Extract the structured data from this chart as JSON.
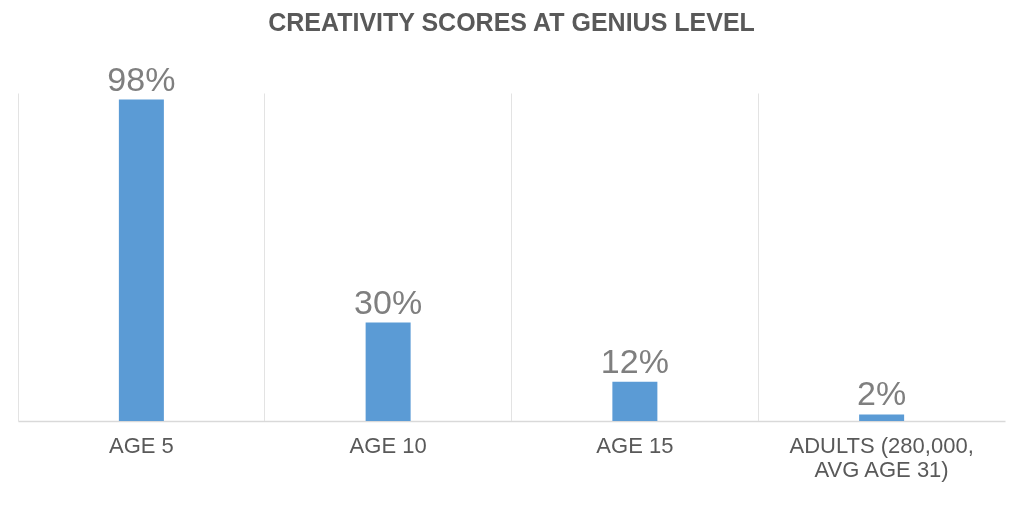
{
  "chart_data": {
    "type": "bar",
    "title": "CREATIVITY SCORES AT GENIUS LEVEL",
    "categories": [
      "AGE 5",
      "AGE 10",
      "AGE 15",
      "ADULTS (280,000, AVG AGE 31)"
    ],
    "values": [
      98,
      30,
      12,
      2
    ],
    "value_labels": [
      "98%",
      "30%",
      "12%",
      "2%"
    ],
    "color": "#5b9bd5",
    "grid": "x",
    "tick_labels": "x"
  }
}
